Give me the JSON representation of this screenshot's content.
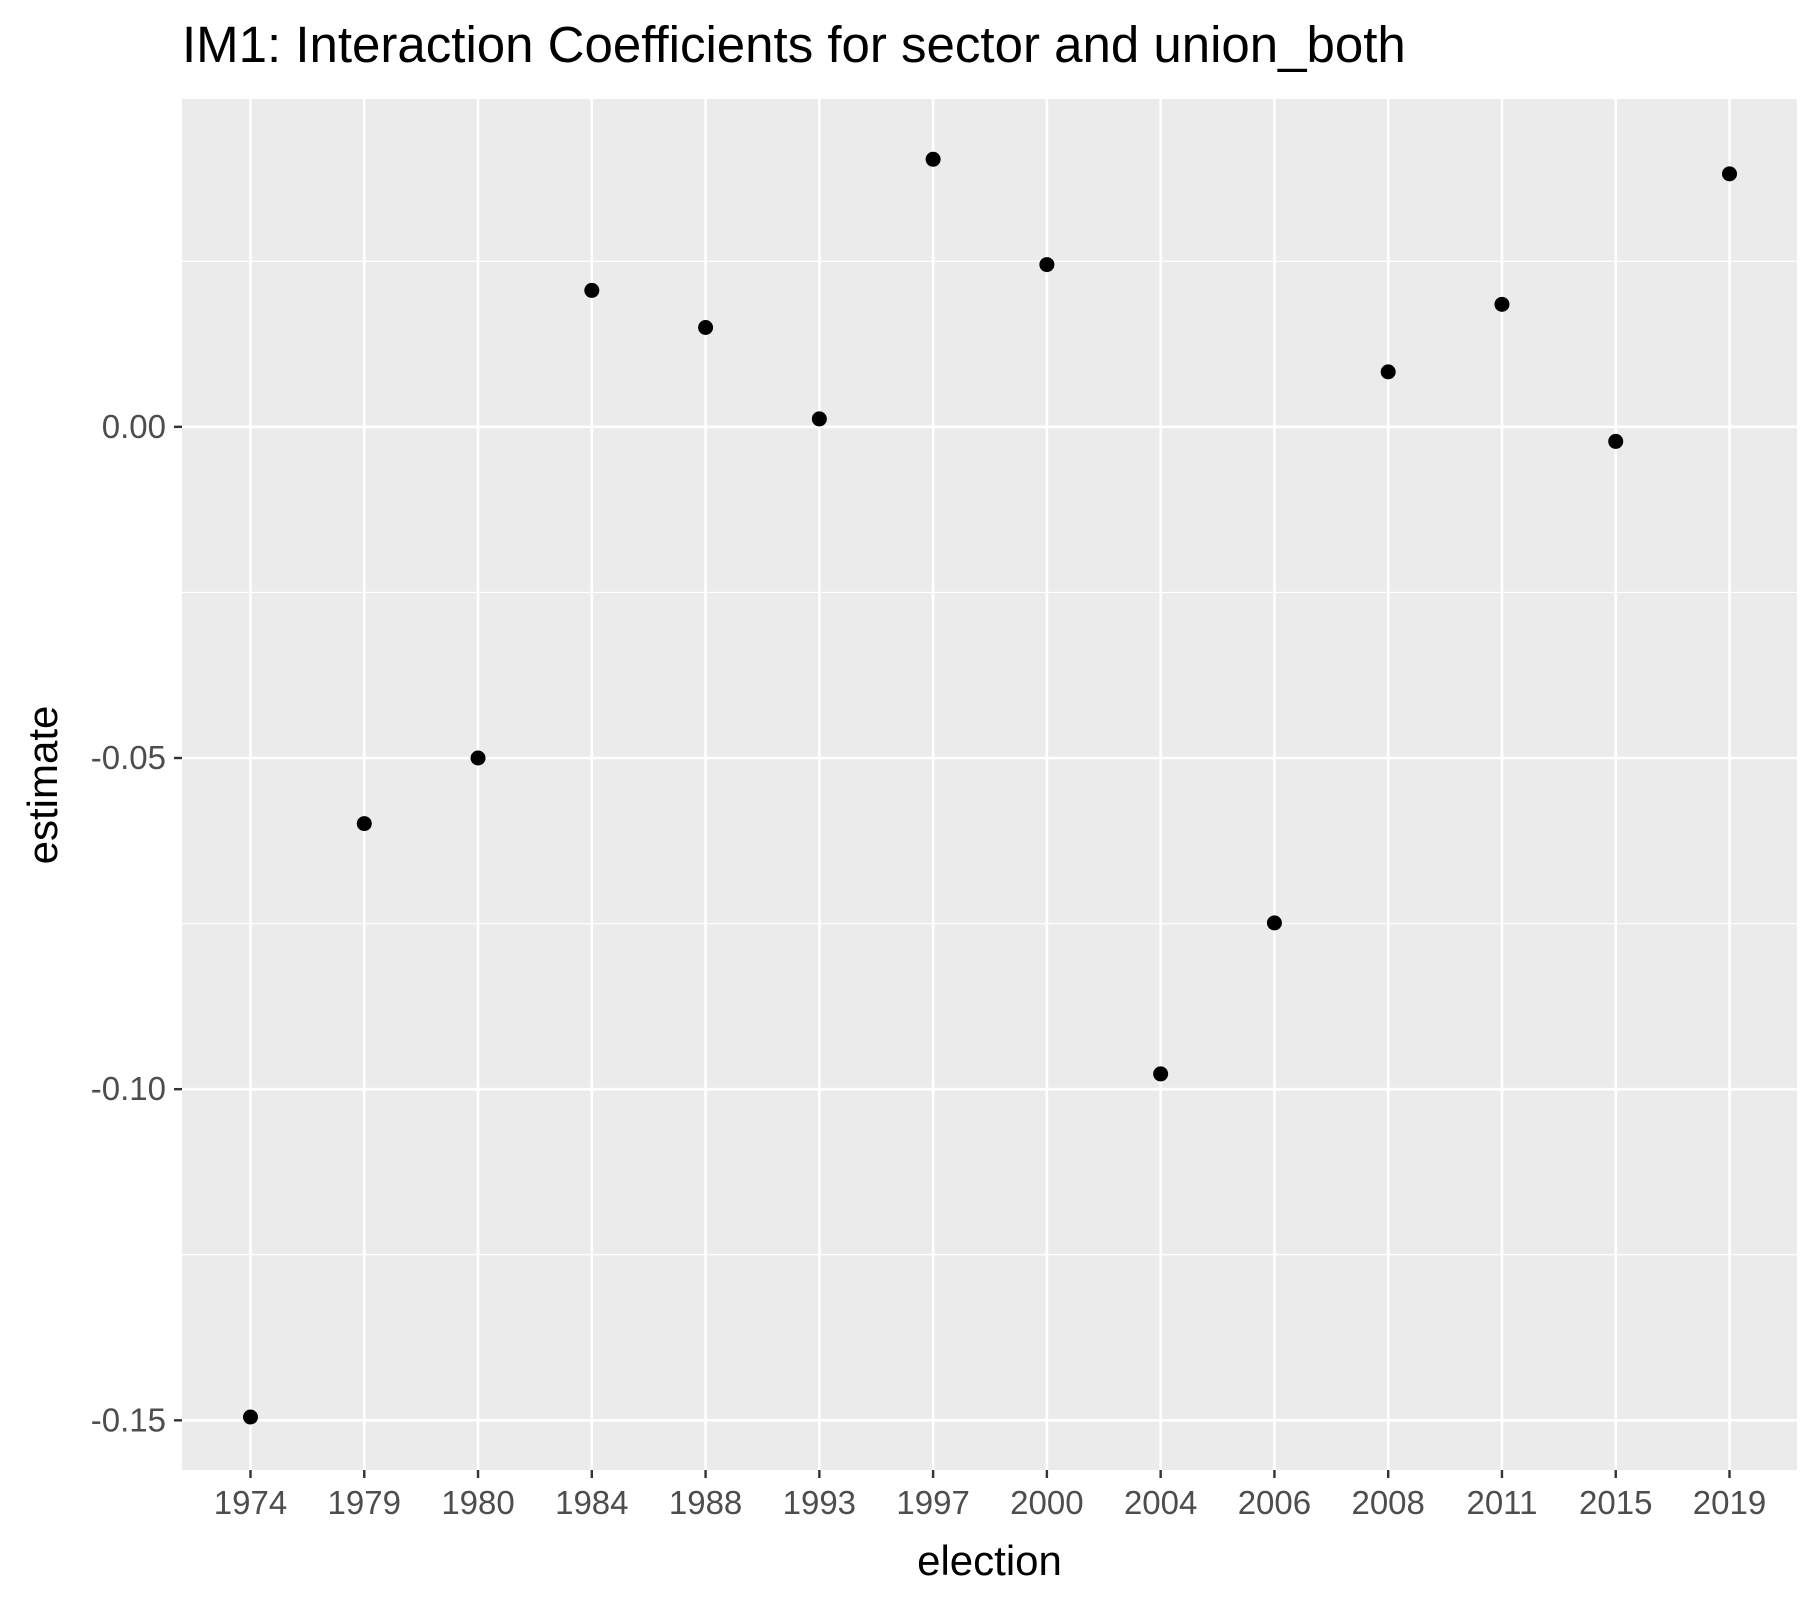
{
  "chart_data": {
    "type": "scatter",
    "title": "IM1: Interaction Coefficients for sector and union_both",
    "xlabel": "election",
    "ylabel": "estimate",
    "categories": [
      "1974",
      "1979",
      "1980",
      "1984",
      "1988",
      "1993",
      "1997",
      "2000",
      "2004",
      "2006",
      "2008",
      "2011",
      "2015",
      "2019"
    ],
    "values": [
      -0.1495,
      -0.0599,
      -0.05,
      0.0206,
      0.015,
      0.0012,
      0.0404,
      0.0245,
      -0.0977,
      -0.0749,
      0.0083,
      0.0185,
      -0.0022,
      0.0382
    ],
    "ylim": [
      -0.1575,
      0.0495
    ],
    "yticks": [
      0.0,
      -0.05,
      -0.1,
      -0.15
    ],
    "ytick_labels": [
      "0.00",
      "-0.05",
      "-0.10",
      "-0.15"
    ],
    "grid": true,
    "colors": {
      "panel_background": "#ebebeb",
      "gridline": "#ffffff",
      "point": "#000000",
      "tick_text": "#4d4d4d"
    }
  }
}
